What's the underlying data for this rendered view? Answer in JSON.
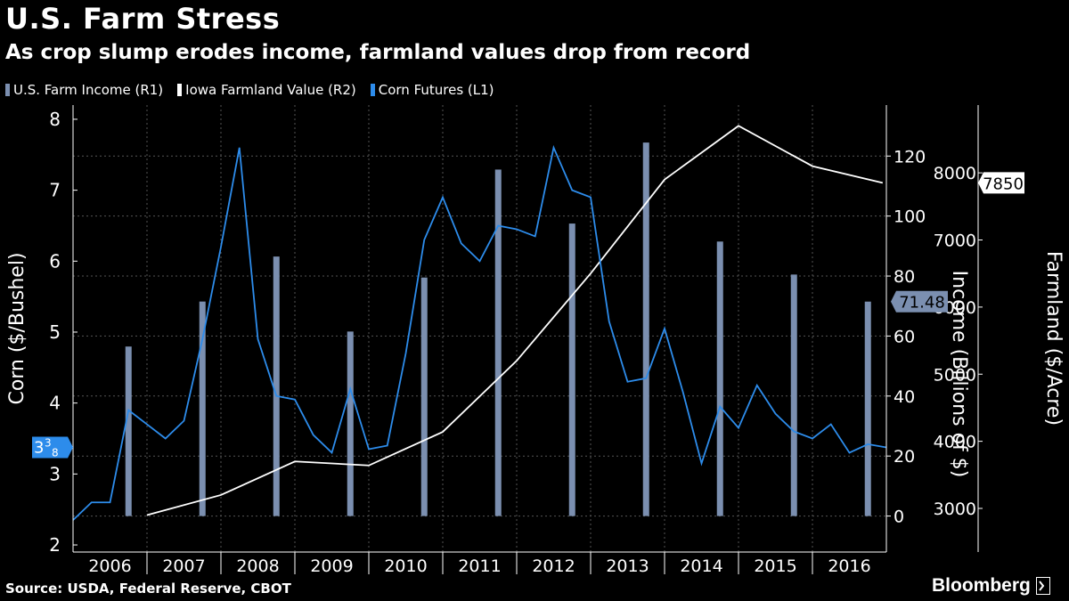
{
  "title": "U.S. Farm Stress",
  "subtitle": "As crop slump erodes income, farmland values drop from record",
  "source": "Source: USDA, Federal Reserve, CBOT",
  "brand": "Bloomberg",
  "colors": {
    "income": "#7b8fb0",
    "farmland": "#ffffff",
    "corn": "#2d8ceb",
    "background": "#000000"
  },
  "chart_data": {
    "type": "line",
    "legend": [
      {
        "name": "U.S. Farm Income (R1)",
        "color": "#7b8fb0",
        "type": "bar"
      },
      {
        "name": "Iowa Farmland Value (R2)",
        "color": "#ffffff",
        "type": "line"
      },
      {
        "name": "Corn Futures (L1)",
        "color": "#2d8ceb",
        "type": "line"
      }
    ],
    "legend_position": "top-left",
    "x_labels": [
      "2006",
      "2007",
      "2008",
      "2009",
      "2010",
      "2011",
      "2012",
      "2013",
      "2014",
      "2015",
      "2016"
    ],
    "x_range": [
      2006.0,
      2017.0
    ],
    "axes": {
      "left": {
        "label": "Corn ($/Bushel)",
        "range": [
          1.9,
          8.2
        ],
        "ticks": [
          2,
          3,
          4,
          5,
          6,
          7,
          8
        ]
      },
      "right1": {
        "label": "Income (Billions of $)",
        "range": [
          -12,
          137
        ],
        "ticks": [
          0,
          20,
          40,
          60,
          80,
          100,
          120
        ]
      },
      "right2": {
        "label": "Farmland ($/Acre)",
        "range": [
          2350,
          9010
        ],
        "ticks": [
          3000,
          4000,
          5000,
          6000,
          7000,
          8000
        ]
      }
    },
    "grid": true,
    "series": [
      {
        "name": "U.S. Farm Income (R1)",
        "type": "bar",
        "axis": "right1",
        "x": [
          2006.75,
          2007.75,
          2008.75,
          2009.75,
          2010.75,
          2011.75,
          2012.75,
          2013.75,
          2014.75,
          2015.75,
          2016.75
        ],
        "values": [
          56.5,
          71.5,
          86.5,
          61.5,
          79.5,
          115.5,
          97.5,
          124.5,
          91.5,
          80.5,
          71.48
        ]
      },
      {
        "name": "Iowa Farmland Value (R2)",
        "type": "line",
        "axis": "right2",
        "x": [
          2007.0,
          2008.0,
          2009.0,
          2010.0,
          2011.0,
          2012.0,
          2013.0,
          2014.0,
          2015.0,
          2016.0,
          2016.95
        ],
        "values": [
          2900,
          3200,
          3700,
          3640,
          4140,
          5200,
          6500,
          7900,
          8700,
          8100,
          7850
        ]
      },
      {
        "name": "Corn Futures (L1)",
        "type": "line",
        "axis": "left",
        "x": [
          2006.0,
          2006.25,
          2006.5,
          2006.75,
          2007.0,
          2007.25,
          2007.5,
          2007.75,
          2008.0,
          2008.25,
          2008.5,
          2008.75,
          2009.0,
          2009.25,
          2009.5,
          2009.75,
          2010.0,
          2010.25,
          2010.5,
          2010.75,
          2011.0,
          2011.25,
          2011.5,
          2011.75,
          2012.0,
          2012.25,
          2012.5,
          2012.75,
          2013.0,
          2013.25,
          2013.5,
          2013.75,
          2014.0,
          2014.25,
          2014.5,
          2014.75,
          2015.0,
          2015.25,
          2015.5,
          2015.75,
          2016.0,
          2016.25,
          2016.5,
          2016.75,
          2017.0
        ],
        "values": [
          2.35,
          2.6,
          2.6,
          3.9,
          3.7,
          3.5,
          3.75,
          4.9,
          6.2,
          7.6,
          4.9,
          4.1,
          4.05,
          3.55,
          3.3,
          4.2,
          3.35,
          3.4,
          4.7,
          6.3,
          6.9,
          6.25,
          6.0,
          6.5,
          6.45,
          6.35,
          7.6,
          7.0,
          6.9,
          5.15,
          4.3,
          4.35,
          5.05,
          4.15,
          3.15,
          3.95,
          3.65,
          4.25,
          3.85,
          3.6,
          3.5,
          3.7,
          3.3,
          3.42,
          3.375
        ]
      }
    ],
    "annotations": [
      {
        "series": "Corn Futures (L1)",
        "axis": "left",
        "value": 3.375,
        "label": "3",
        "label_frac": "3",
        "label_den": "8"
      },
      {
        "series": "U.S. Farm Income (R1)",
        "axis": "right1",
        "value": 71.48,
        "label": "71.48"
      },
      {
        "series": "Iowa Farmland Value (R2)",
        "axis": "right2",
        "value": 7850,
        "label": "7850"
      }
    ]
  }
}
